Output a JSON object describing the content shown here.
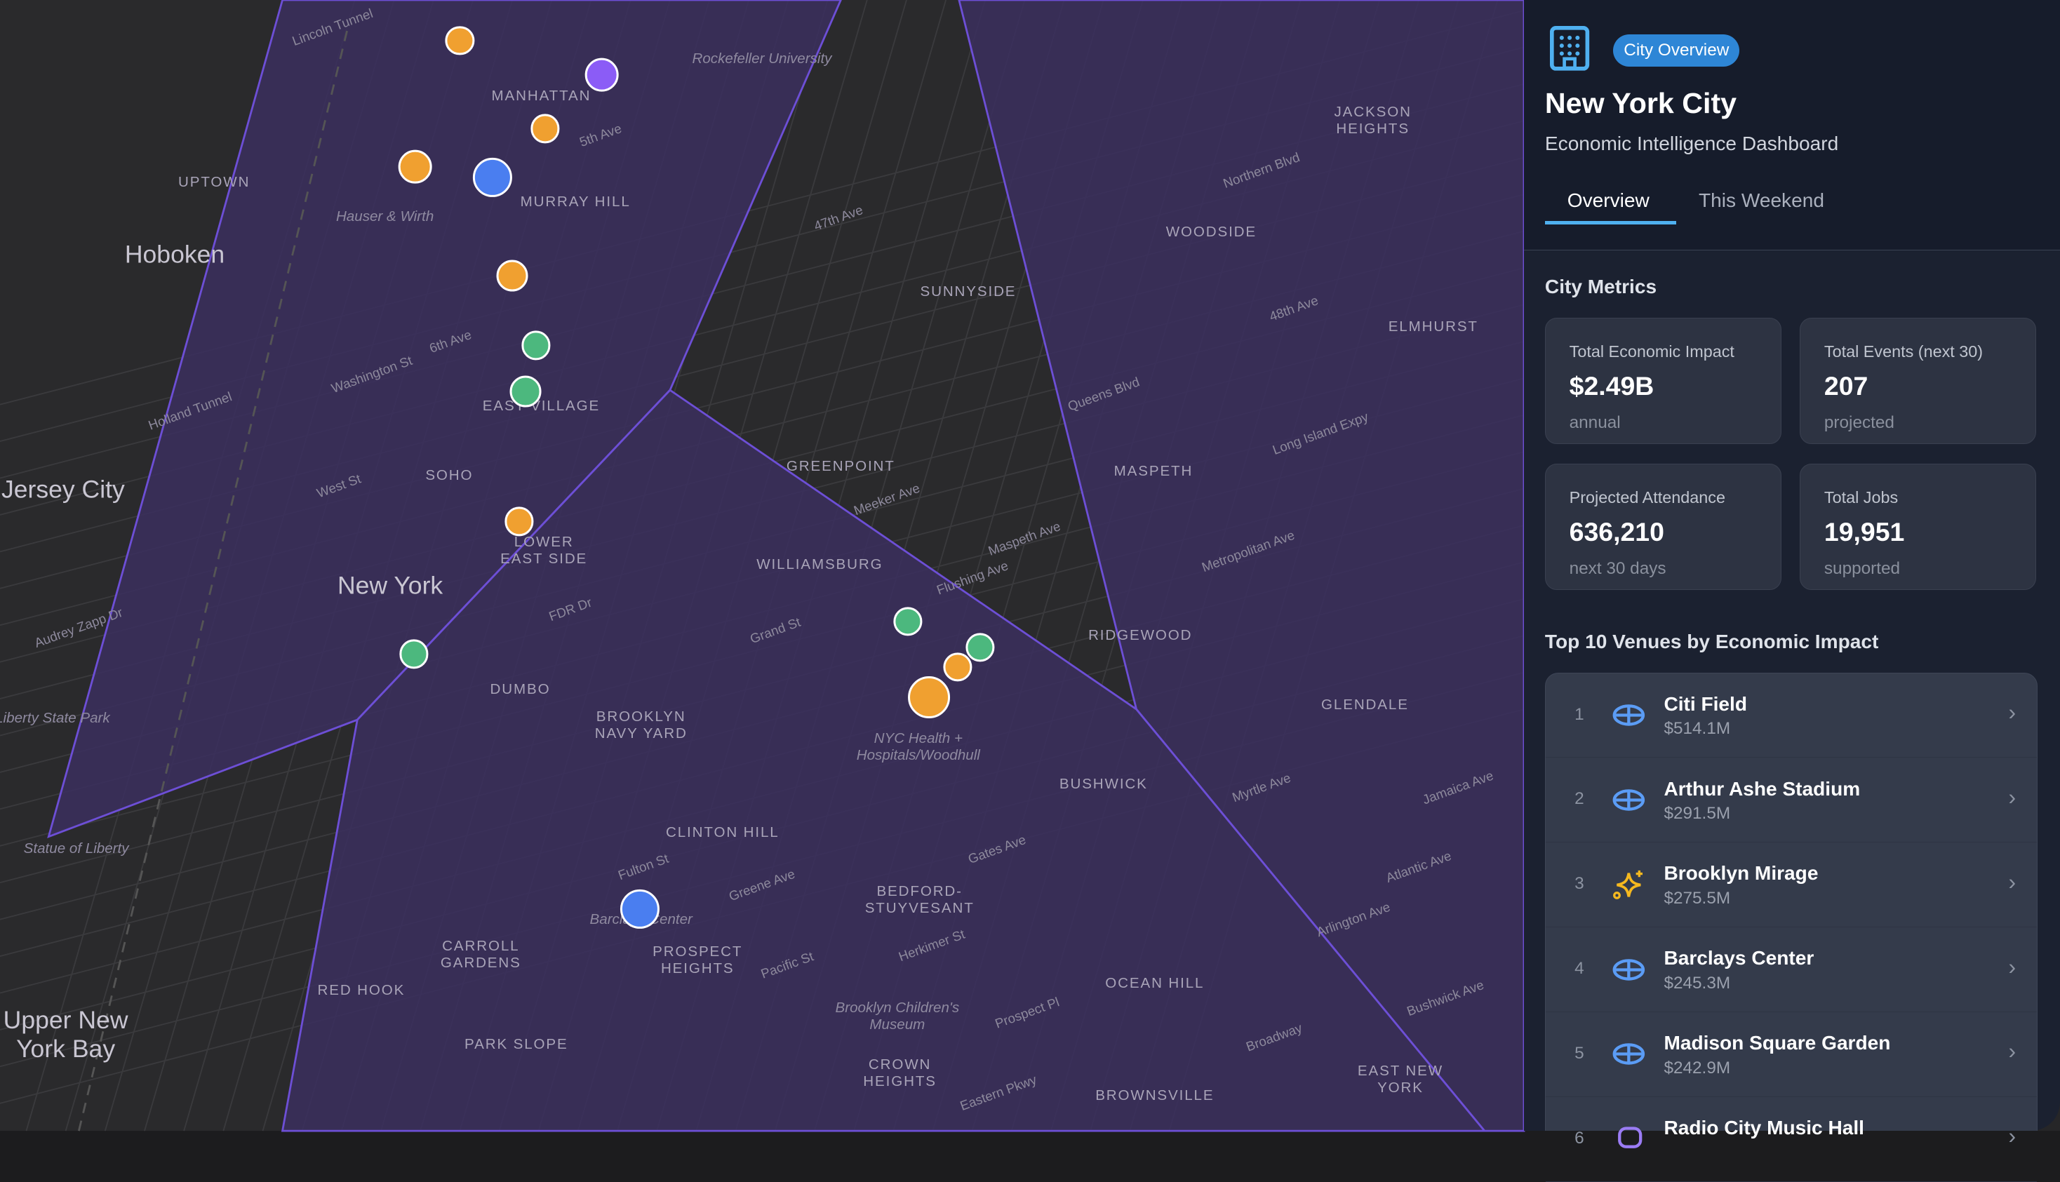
{
  "map": {
    "labels": [
      "MANHATTAN",
      "MURRAY HILL",
      "UPTOWN",
      "Hoboken",
      "Jersey City",
      "New York",
      "SOHO",
      "EAST VILLAGE",
      "LOWER\nEAST SIDE",
      "DUMBO",
      "BROOKLYN\nNAVY YARD",
      "WILLIAMSBURG",
      "GREENPOINT",
      "SUNNYSIDE",
      "WOODSIDE",
      "MASPETH",
      "RIDGEWOOD",
      "BUSHWICK",
      "CLINTON HILL",
      "BEDFORD-\nSTUYVESANT",
      "PROSPECT\nHEIGHTS",
      "CARROLL\nGARDENS",
      "RED HOOK",
      "PARK SLOPE",
      "CROWN\nHEIGHTS",
      "OCEAN HILL",
      "BROWNSVILLE",
      "EAST NEW\nYORK",
      "GLENDALE",
      "ELMHURST",
      "JACKSON\nHEIGHTS",
      "Statue of Liberty",
      "Upper New\nYork Bay",
      "Rockefeller University",
      "Hauser & Wirth",
      "NYC Health +\nHospitals/Woodhull",
      "Brooklyn Children's\nMuseum",
      "Barclays Center",
      "Lincoln Tunnel",
      "Holland Tunnel",
      "FDR Dr",
      "Fulton St",
      "Flushing Ave",
      "Long Island Expy",
      "Atlantic Ave",
      "Metropolitan Ave",
      "Grand St",
      "Myrtle Ave",
      "Meeker Ave",
      "Maspeth Ave",
      "Greene Ave",
      "Gates Ave",
      "Herkimer St",
      "Pacific St",
      "Prospect Pl",
      "Eastern Pkwy",
      "Arlington Ave",
      "Jamaica Ave",
      "Bushwick Ave",
      "Broadway",
      "Liberty State Park",
      "Audrey Zapp Dr",
      "Washington St",
      "West St",
      "5th Ave",
      "6th Ave",
      "47th Ave",
      "48th Ave",
      "Queens Blvd",
      "Northern Blvd"
    ],
    "markers": [
      {
        "category": "music",
        "color": "#f0a030"
      },
      {
        "category": "theater",
        "color": "#8b5cf6"
      },
      {
        "category": "music",
        "color": "#f0a030"
      },
      {
        "category": "music",
        "color": "#f0a030"
      },
      {
        "category": "arena",
        "color": "#4a7ef0"
      },
      {
        "category": "music",
        "color": "#f0a030"
      },
      {
        "category": "culture",
        "color": "#4cb87e"
      },
      {
        "category": "culture",
        "color": "#4cb87e"
      },
      {
        "category": "music",
        "color": "#f0a030"
      },
      {
        "category": "culture",
        "color": "#4cb87e"
      },
      {
        "category": "culture",
        "color": "#4cb87e"
      },
      {
        "category": "culture",
        "color": "#4cb87e"
      },
      {
        "category": "music",
        "color": "#f0a030"
      },
      {
        "category": "music",
        "color": "#f0a030"
      },
      {
        "category": "arena",
        "color": "#4a7ef0"
      }
    ],
    "region_fill": "#3b2f5e",
    "region_stroke": "#6d4fd6"
  },
  "sidebar": {
    "badge": "City Overview",
    "title": "New York City",
    "subtitle": "Economic Intelligence Dashboard",
    "tabs": [
      {
        "label": "Overview",
        "active": true
      },
      {
        "label": "This Weekend",
        "active": false
      }
    ],
    "metrics_heading": "City Metrics",
    "metrics": [
      {
        "label": "Total Economic Impact",
        "value": "$2.49B",
        "note": "annual"
      },
      {
        "label": "Total Events (next 30)",
        "value": "207",
        "note": "projected"
      },
      {
        "label": "Projected Attendance",
        "value": "636,210",
        "note": "next 30 days"
      },
      {
        "label": "Total Jobs",
        "value": "19,951",
        "note": "supported"
      }
    ],
    "venues_heading": "Top 10 Venues by Economic Impact",
    "venues": [
      {
        "rank": "1",
        "name": "Citi Field",
        "value": "$514.1M",
        "icon": "stadium-icon"
      },
      {
        "rank": "2",
        "name": "Arthur Ashe Stadium",
        "value": "$291.5M",
        "icon": "stadium-icon"
      },
      {
        "rank": "3",
        "name": "Brooklyn Mirage",
        "value": "$275.5M",
        "icon": "sparkles-icon"
      },
      {
        "rank": "4",
        "name": "Barclays Center",
        "value": "$245.3M",
        "icon": "stadium-icon"
      },
      {
        "rank": "5",
        "name": "Madison Square Garden",
        "value": "$242.9M",
        "icon": "stadium-icon"
      },
      {
        "rank": "6",
        "name": "Radio City Music Hall",
        "value": "",
        "icon": "theater-icon"
      }
    ],
    "colors": {
      "accent": "#4fb0f0",
      "badge": "#2e86d6",
      "stadium_icon": "#5b9cf5",
      "sparkle_icon": "#f5b81f",
      "theater_icon": "#9b7cf5"
    }
  }
}
